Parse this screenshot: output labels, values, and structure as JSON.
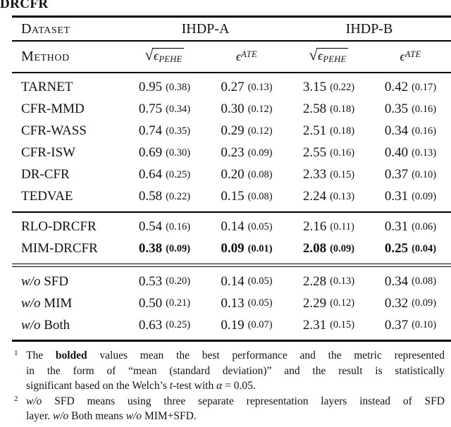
{
  "caption_tail": "DRCFR",
  "table": {
    "dataset_label": "Dataset",
    "method_label": "Method",
    "groups": [
      {
        "label": "IHDP-A"
      },
      {
        "label": "IHDP-B"
      }
    ],
    "math": {
      "sqrt": "√",
      "epsilon": "ϵ",
      "pehe_sub": "PEHE",
      "ate_sub": "ATE"
    },
    "sections": [
      {
        "name": "baselines",
        "rows": [
          {
            "method": [
              {
                "t": "TARNET"
              }
            ],
            "bold": false,
            "cells": [
              {
                "mean": "0.95",
                "sd": "(0.38)"
              },
              {
                "mean": "0.27",
                "sd": "(0.13)"
              },
              {
                "mean": "3.15",
                "sd": "(0.22)"
              },
              {
                "mean": "0.42",
                "sd": "(0.17)"
              }
            ]
          },
          {
            "method": [
              {
                "t": "CFR-MMD"
              }
            ],
            "bold": false,
            "cells": [
              {
                "mean": "0.75",
                "sd": "(0.34)"
              },
              {
                "mean": "0.30",
                "sd": "(0.12)"
              },
              {
                "mean": "2.58",
                "sd": "(0.18)"
              },
              {
                "mean": "0.35",
                "sd": "(0.16)"
              }
            ]
          },
          {
            "method": [
              {
                "t": "CFR-WASS"
              }
            ],
            "bold": false,
            "cells": [
              {
                "mean": "0.74",
                "sd": "(0.35)"
              },
              {
                "mean": "0.29",
                "sd": "(0.12)"
              },
              {
                "mean": "2.51",
                "sd": "(0.18)"
              },
              {
                "mean": "0.34",
                "sd": "(0.16)"
              }
            ]
          },
          {
            "method": [
              {
                "t": "CFR-ISW"
              }
            ],
            "bold": false,
            "cells": [
              {
                "mean": "0.69",
                "sd": "(0.30)"
              },
              {
                "mean": "0.23",
                "sd": "(0.09)"
              },
              {
                "mean": "2.55",
                "sd": "(0.16)"
              },
              {
                "mean": "0.40",
                "sd": "(0.13)"
              }
            ]
          },
          {
            "method": [
              {
                "t": "DR-CFR"
              }
            ],
            "bold": false,
            "cells": [
              {
                "mean": "0.64",
                "sd": "(0.25)"
              },
              {
                "mean": "0.20",
                "sd": "(0.08)"
              },
              {
                "mean": "2.33",
                "sd": "(0.15)"
              },
              {
                "mean": "0.37",
                "sd": "(0.10)"
              }
            ]
          },
          {
            "method": [
              {
                "t": "TEDVAE"
              }
            ],
            "bold": false,
            "cells": [
              {
                "mean": "0.58",
                "sd": "(0.22)"
              },
              {
                "mean": "0.15",
                "sd": "(0.08)"
              },
              {
                "mean": "2.24",
                "sd": "(0.13)"
              },
              {
                "mean": "0.31",
                "sd": "(0.09)"
              }
            ]
          }
        ]
      },
      {
        "name": "proposed",
        "rows": [
          {
            "method": [
              {
                "t": "RLO-DRCFR"
              }
            ],
            "bold": false,
            "cells": [
              {
                "mean": "0.54",
                "sd": "(0.16)"
              },
              {
                "mean": "0.14",
                "sd": "(0.05)"
              },
              {
                "mean": "2.16",
                "sd": "(0.11)"
              },
              {
                "mean": "0.31",
                "sd": "(0.06)"
              }
            ]
          },
          {
            "method": [
              {
                "t": "MIM-DRCFR"
              }
            ],
            "bold": true,
            "cells": [
              {
                "mean": "0.38",
                "sd": "(0.09)"
              },
              {
                "mean": "0.09",
                "sd": "(0.01)"
              },
              {
                "mean": "2.08",
                "sd": "(0.09)"
              },
              {
                "mean": "0.25",
                "sd": "(0.04)"
              }
            ]
          }
        ]
      },
      {
        "name": "ablation",
        "rows": [
          {
            "method": [
              {
                "t": "w/o",
                "i": true
              },
              {
                "t": " SFD"
              }
            ],
            "bold": false,
            "cells": [
              {
                "mean": "0.53",
                "sd": "(0.20)"
              },
              {
                "mean": "0.14",
                "sd": "(0.05)"
              },
              {
                "mean": "2.28",
                "sd": "(0.13)"
              },
              {
                "mean": "0.34",
                "sd": "(0.08)"
              }
            ]
          },
          {
            "method": [
              {
                "t": "w/o",
                "i": true
              },
              {
                "t": " MIM"
              }
            ],
            "bold": false,
            "cells": [
              {
                "mean": "0.50",
                "sd": "(0.21)"
              },
              {
                "mean": "0.13",
                "sd": "(0.05)"
              },
              {
                "mean": "2.29",
                "sd": "(0.12)"
              },
              {
                "mean": "0.32",
                "sd": "(0.09)"
              }
            ]
          },
          {
            "method": [
              {
                "t": "w/o",
                "i": true
              },
              {
                "t": " Both"
              }
            ],
            "bold": false,
            "cells": [
              {
                "mean": "0.63",
                "sd": "(0.25)"
              },
              {
                "mean": "0.19",
                "sd": "(0.07)"
              },
              {
                "mean": "2.31",
                "sd": "(0.15)"
              },
              {
                "mean": "0.37",
                "sd": "(0.10)"
              }
            ]
          }
        ]
      }
    ]
  },
  "footnotes": [
    {
      "num": "1",
      "lines": [
        [
          {
            "t": "The "
          },
          {
            "t": "bolded",
            "b": true
          },
          {
            "t": " values mean the best performance and the metric represented"
          }
        ],
        [
          {
            "t": "in the form of “mean (standard deviation)” and the result is statistically"
          }
        ],
        [
          {
            "t": "significant based on the Welch’s "
          },
          {
            "t": "t",
            "i": true
          },
          {
            "t": "-test with "
          },
          {
            "t": "α",
            "i": true
          },
          {
            "t": " = 0.05."
          }
        ]
      ]
    },
    {
      "num": "2",
      "lines": [
        [
          {
            "t": "w/o",
            "i": true
          },
          {
            "t": " SFD means using three separate representation layers instead of SFD"
          }
        ],
        [
          {
            "t": "layer. "
          },
          {
            "t": "w/o",
            "i": true
          },
          {
            "t": " Both means "
          },
          {
            "t": "w/o",
            "i": true
          },
          {
            "t": " MIM+SFD."
          }
        ]
      ]
    }
  ]
}
